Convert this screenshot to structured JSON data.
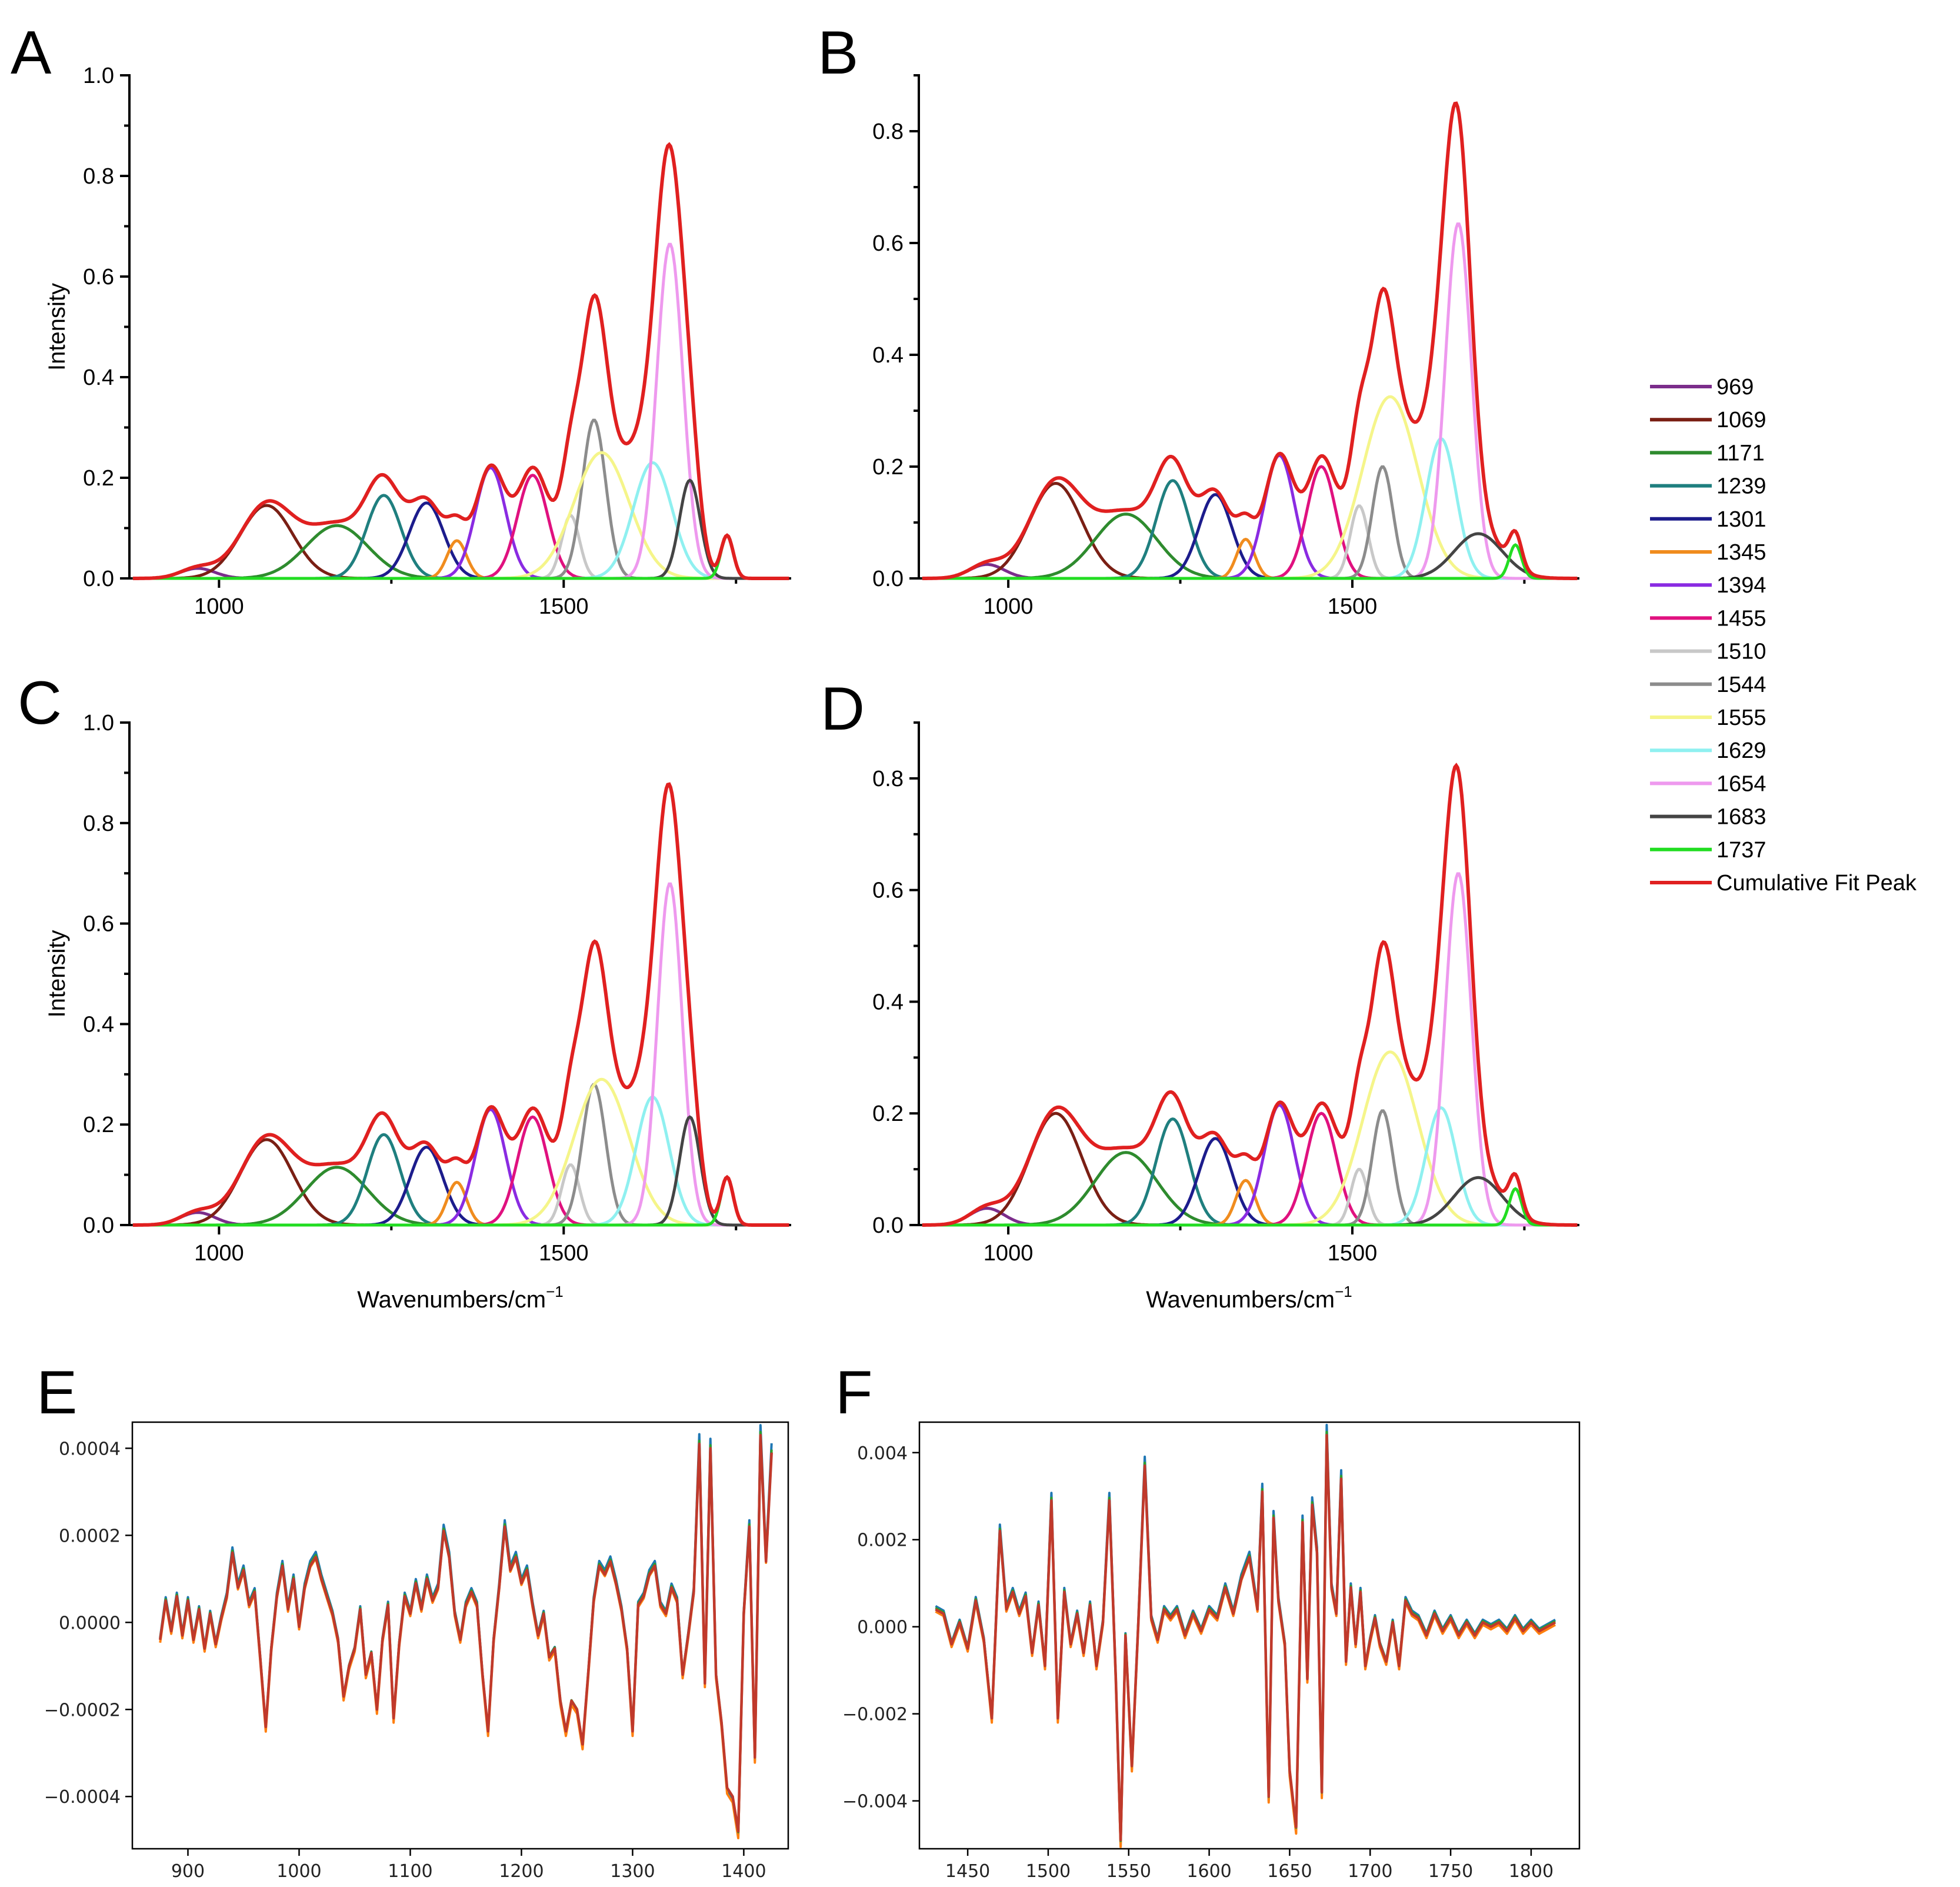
{
  "chart_data": [
    {
      "panel": "A",
      "type": "line",
      "ylabel": "Intensity",
      "xlabel": "",
      "xlim": [
        870,
        1830
      ],
      "ylim": [
        0,
        1.0
      ],
      "xticks": [
        "1000",
        "1500"
      ],
      "yticks": [
        "0.0",
        "0.2",
        "0.4",
        "0.6",
        "0.8",
        "1.0"
      ],
      "peaks": [
        {
          "name": "969",
          "center": 969,
          "height": 0.02,
          "sigma": 25
        },
        {
          "name": "1069",
          "center": 1069,
          "height": 0.145,
          "sigma": 38
        },
        {
          "name": "1171",
          "center": 1171,
          "height": 0.105,
          "sigma": 45
        },
        {
          "name": "1239",
          "center": 1239,
          "height": 0.165,
          "sigma": 25
        },
        {
          "name": "1301",
          "center": 1301,
          "height": 0.15,
          "sigma": 25
        },
        {
          "name": "1345",
          "center": 1345,
          "height": 0.075,
          "sigma": 14
        },
        {
          "name": "1394",
          "center": 1394,
          "height": 0.22,
          "sigma": 22
        },
        {
          "name": "1455",
          "center": 1455,
          "height": 0.205,
          "sigma": 22
        },
        {
          "name": "1510",
          "center": 1510,
          "height": 0.125,
          "sigma": 13
        },
        {
          "name": "1544",
          "center": 1544,
          "height": 0.315,
          "sigma": 17
        },
        {
          "name": "1555",
          "center": 1555,
          "height": 0.25,
          "sigma": 40
        },
        {
          "name": "1629",
          "center": 1629,
          "height": 0.23,
          "sigma": 28
        },
        {
          "name": "1654",
          "center": 1654,
          "height": 0.665,
          "sigma": 19
        },
        {
          "name": "1683",
          "center": 1683,
          "height": 0.195,
          "sigma": 15
        },
        {
          "name": "1737",
          "center": 1737,
          "height": 0.085,
          "sigma": 9
        }
      ]
    },
    {
      "panel": "B",
      "type": "line",
      "ylabel": "",
      "xlabel": "",
      "xlim": [
        870,
        1830
      ],
      "ylim": [
        0,
        0.9
      ],
      "xticks": [
        "1000",
        "1500"
      ],
      "yticks": [
        "0.0",
        "0.2",
        "0.4",
        "0.6",
        "0.8"
      ],
      "peaks": [
        {
          "name": "969",
          "center": 969,
          "height": 0.025,
          "sigma": 25
        },
        {
          "name": "1069",
          "center": 1069,
          "height": 0.17,
          "sigma": 38
        },
        {
          "name": "1171",
          "center": 1171,
          "height": 0.115,
          "sigma": 45
        },
        {
          "name": "1239",
          "center": 1239,
          "height": 0.175,
          "sigma": 24
        },
        {
          "name": "1301",
          "center": 1301,
          "height": 0.15,
          "sigma": 24
        },
        {
          "name": "1345",
          "center": 1345,
          "height": 0.07,
          "sigma": 13
        },
        {
          "name": "1394",
          "center": 1394,
          "height": 0.22,
          "sigma": 22
        },
        {
          "name": "1455",
          "center": 1455,
          "height": 0.2,
          "sigma": 21
        },
        {
          "name": "1510",
          "center": 1510,
          "height": 0.13,
          "sigma": 13
        },
        {
          "name": "1544",
          "center": 1544,
          "height": 0.2,
          "sigma": 15
        },
        {
          "name": "1555",
          "center": 1555,
          "height": 0.325,
          "sigma": 40
        },
        {
          "name": "1629",
          "center": 1629,
          "height": 0.25,
          "sigma": 22
        },
        {
          "name": "1654",
          "center": 1654,
          "height": 0.635,
          "sigma": 19
        },
        {
          "name": "1683",
          "center": 1683,
          "height": 0.08,
          "sigma": 35
        },
        {
          "name": "1737",
          "center": 1737,
          "height": 0.06,
          "sigma": 9
        }
      ]
    },
    {
      "panel": "C",
      "type": "line",
      "ylabel": "Intensity",
      "xlabel": "Wavenumbers/cm",
      "xlabel_sup": "−1",
      "xlim": [
        870,
        1830
      ],
      "ylim": [
        0,
        1.0
      ],
      "xticks": [
        "1000",
        "1500"
      ],
      "yticks": [
        "0.0",
        "0.2",
        "0.4",
        "0.6",
        "0.8",
        "1.0"
      ],
      "peaks": [
        {
          "name": "969",
          "center": 969,
          "height": 0.025,
          "sigma": 25
        },
        {
          "name": "1069",
          "center": 1069,
          "height": 0.17,
          "sigma": 38
        },
        {
          "name": "1171",
          "center": 1171,
          "height": 0.115,
          "sigma": 45
        },
        {
          "name": "1239",
          "center": 1239,
          "height": 0.18,
          "sigma": 24
        },
        {
          "name": "1301",
          "center": 1301,
          "height": 0.155,
          "sigma": 24
        },
        {
          "name": "1345",
          "center": 1345,
          "height": 0.085,
          "sigma": 14
        },
        {
          "name": "1394",
          "center": 1394,
          "height": 0.23,
          "sigma": 22
        },
        {
          "name": "1455",
          "center": 1455,
          "height": 0.215,
          "sigma": 22
        },
        {
          "name": "1510",
          "center": 1510,
          "height": 0.12,
          "sigma": 13
        },
        {
          "name": "1544",
          "center": 1544,
          "height": 0.28,
          "sigma": 17
        },
        {
          "name": "1555",
          "center": 1555,
          "height": 0.29,
          "sigma": 40
        },
        {
          "name": "1629",
          "center": 1629,
          "height": 0.255,
          "sigma": 24
        },
        {
          "name": "1654",
          "center": 1654,
          "height": 0.68,
          "sigma": 18
        },
        {
          "name": "1683",
          "center": 1683,
          "height": 0.215,
          "sigma": 15
        },
        {
          "name": "1737",
          "center": 1737,
          "height": 0.095,
          "sigma": 9
        }
      ]
    },
    {
      "panel": "D",
      "type": "line",
      "ylabel": "",
      "xlabel": "Wavenumbers/cm",
      "xlabel_sup": "−1",
      "xlim": [
        870,
        1830
      ],
      "ylim": [
        0,
        0.9
      ],
      "xticks": [
        "1000",
        "1500"
      ],
      "yticks": [
        "0.0",
        "0.2",
        "0.4",
        "0.6",
        "0.8"
      ],
      "peaks": [
        {
          "name": "969",
          "center": 969,
          "height": 0.03,
          "sigma": 25
        },
        {
          "name": "1069",
          "center": 1069,
          "height": 0.2,
          "sigma": 38
        },
        {
          "name": "1171",
          "center": 1171,
          "height": 0.13,
          "sigma": 45
        },
        {
          "name": "1239",
          "center": 1239,
          "height": 0.19,
          "sigma": 24
        },
        {
          "name": "1301",
          "center": 1301,
          "height": 0.155,
          "sigma": 24
        },
        {
          "name": "1345",
          "center": 1345,
          "height": 0.08,
          "sigma": 14
        },
        {
          "name": "1394",
          "center": 1394,
          "height": 0.215,
          "sigma": 22
        },
        {
          "name": "1455",
          "center": 1455,
          "height": 0.2,
          "sigma": 22
        },
        {
          "name": "1510",
          "center": 1510,
          "height": 0.1,
          "sigma": 12
        },
        {
          "name": "1544",
          "center": 1544,
          "height": 0.205,
          "sigma": 15
        },
        {
          "name": "1555",
          "center": 1555,
          "height": 0.31,
          "sigma": 40
        },
        {
          "name": "1629",
          "center": 1629,
          "height": 0.21,
          "sigma": 22
        },
        {
          "name": "1654",
          "center": 1654,
          "height": 0.63,
          "sigma": 19
        },
        {
          "name": "1683",
          "center": 1683,
          "height": 0.085,
          "sigma": 35
        },
        {
          "name": "1737",
          "center": 1737,
          "height": 0.065,
          "sigma": 9
        }
      ]
    },
    {
      "panel": "E",
      "type": "line",
      "xlim": [
        850,
        1440
      ],
      "ylim": [
        -0.00052,
        0.00046
      ],
      "xticks": [
        "900",
        "1000",
        "1100",
        "1200",
        "1300",
        "1400"
      ],
      "xtick_values": [
        900,
        1000,
        1100,
        1200,
        1300,
        1400
      ],
      "yticks": [
        "0.0004",
        "0.0002",
        "0.0000",
        "−0.0002",
        "−0.0004"
      ],
      "ytick_values": [
        0.0004,
        0.0002,
        0.0,
        -0.0002,
        -0.0004
      ],
      "series_colors": [
        "#1f77b4",
        "#ff7f0e",
        "#2ca02c",
        "#c0392b"
      ],
      "x": [
        875,
        880,
        885,
        890,
        895,
        900,
        905,
        910,
        915,
        920,
        925,
        930,
        935,
        940,
        945,
        950,
        955,
        960,
        965,
        970,
        975,
        980,
        985,
        990,
        995,
        1000,
        1005,
        1010,
        1015,
        1020,
        1025,
        1030,
        1035,
        1040,
        1045,
        1050,
        1055,
        1060,
        1065,
        1070,
        1075,
        1080,
        1085,
        1090,
        1095,
        1100,
        1105,
        1110,
        1115,
        1120,
        1125,
        1130,
        1135,
        1140,
        1145,
        1150,
        1155,
        1160,
        1165,
        1170,
        1175,
        1180,
        1185,
        1190,
        1195,
        1200,
        1205,
        1210,
        1215,
        1220,
        1225,
        1230,
        1235,
        1240,
        1245,
        1250,
        1255,
        1260,
        1265,
        1270,
        1275,
        1280,
        1285,
        1290,
        1295,
        1300,
        1305,
        1310,
        1315,
        1320,
        1325,
        1330,
        1335,
        1340,
        1345,
        1350,
        1355,
        1360,
        1365,
        1370,
        1375,
        1380,
        1385,
        1390,
        1395,
        1400,
        1405,
        1410,
        1415,
        1420,
        1425
      ],
      "y": [
        -4e-05,
        5e-05,
        -2e-05,
        6e-05,
        -3e-05,
        5e-05,
        -4e-05,
        3e-05,
        -6e-05,
        2e-05,
        -5e-05,
        1e-05,
        6e-05,
        0.00016,
        8e-05,
        0.00012,
        4e-05,
        7e-05,
        -8e-05,
        -0.00024,
        -6e-05,
        6e-05,
        0.00013,
        3e-05,
        0.0001,
        -1e-05,
        8e-05,
        0.00013,
        0.00015,
        0.0001,
        6e-05,
        2e-05,
        -4e-05,
        -0.00017,
        -0.0001,
        -6e-05,
        3e-05,
        -0.00012,
        -7e-05,
        -0.0002,
        -4e-05,
        4e-05,
        -0.00022,
        -5e-05,
        6e-05,
        2e-05,
        9e-05,
        3e-05,
        0.0001,
        5e-05,
        8e-05,
        0.00021,
        0.00015,
        2e-05,
        -4e-05,
        4e-05,
        7e-05,
        4e-05,
        -0.00012,
        -0.00025,
        -4e-05,
        8e-05,
        0.00022,
        0.00012,
        0.00015,
        9e-05,
        0.00012,
        4e-05,
        -3e-05,
        2e-05,
        -8e-05,
        -6e-05,
        -0.00018,
        -0.00025,
        -0.00018,
        -0.0002,
        -0.00028,
        -0.00012,
        5e-05,
        0.00013,
        0.00011,
        0.00014,
        9e-05,
        3e-05,
        -6e-05,
        -0.00025,
        4e-05,
        6e-05,
        0.00011,
        0.00013,
        4e-05,
        2e-05,
        8e-05,
        5e-05,
        -0.00012,
        -3e-05,
        7e-05,
        0.00041,
        -0.00014,
        0.0004,
        -0.00012,
        -0.00023,
        -0.00038,
        -0.0004,
        -0.00048,
        2e-05,
        0.00022,
        -0.00031,
        0.00043,
        0.00014,
        0.00039
      ]
    },
    {
      "panel": "F",
      "type": "line",
      "xlim": [
        1420,
        1830
      ],
      "ylim": [
        -0.0051,
        0.0047
      ],
      "xticks": [
        "1450",
        "1500",
        "1550",
        "1600",
        "1650",
        "1700",
        "1750",
        "1800"
      ],
      "xtick_values": [
        1450,
        1500,
        1550,
        1600,
        1650,
        1700,
        1750,
        1800
      ],
      "yticks": [
        "0.004",
        "0.002",
        "0.000",
        "−0.002",
        "−0.004"
      ],
      "ytick_values": [
        0.004,
        0.002,
        0.0,
        -0.002,
        -0.004
      ],
      "series_colors": [
        "#1f77b4",
        "#ff7f0e",
        "#2ca02c",
        "#c0392b"
      ],
      "x": [
        1430,
        1435,
        1440,
        1445,
        1450,
        1455,
        1460,
        1465,
        1470,
        1474,
        1478,
        1482,
        1486,
        1490,
        1494,
        1498,
        1502,
        1506,
        1510,
        1514,
        1518,
        1522,
        1526,
        1530,
        1534,
        1538,
        1542,
        1545,
        1548,
        1552,
        1556,
        1560,
        1564,
        1568,
        1572,
        1576,
        1580,
        1585,
        1590,
        1595,
        1600,
        1605,
        1610,
        1615,
        1620,
        1625,
        1630,
        1633,
        1637,
        1640,
        1643,
        1647,
        1650,
        1654,
        1658,
        1661,
        1664,
        1667,
        1670,
        1673,
        1676,
        1679,
        1682,
        1685,
        1688,
        1691,
        1694,
        1697,
        1700,
        1703,
        1706,
        1710,
        1714,
        1718,
        1722,
        1726,
        1730,
        1735,
        1740,
        1745,
        1750,
        1755,
        1760,
        1765,
        1770,
        1775,
        1780,
        1785,
        1790,
        1795,
        1800,
        1805,
        1810,
        1815
      ],
      "y": [
        0.0004,
        0.0003,
        -0.0004,
        0.0001,
        -0.0005,
        0.0006,
        -0.0003,
        -0.0021,
        0.0022,
        0.0004,
        0.0008,
        0.0003,
        0.0007,
        -0.0006,
        0.0005,
        -0.0009,
        0.0029,
        -0.0021,
        0.0008,
        -0.0004,
        0.0003,
        -0.0006,
        0.0005,
        -0.0009,
        0.0001,
        0.0029,
        -0.0012,
        -0.0049,
        -0.0002,
        -0.0032,
        0.0001,
        0.0037,
        0.0002,
        -0.0003,
        0.0004,
        0.0002,
        0.0004,
        -0.0002,
        0.0003,
        -0.0001,
        0.0004,
        0.0002,
        0.0009,
        0.0003,
        0.0011,
        0.0016,
        0.0004,
        0.0031,
        -0.0039,
        0.0025,
        0.0006,
        -0.0004,
        -0.0033,
        -0.0046,
        0.0024,
        -0.0012,
        0.0028,
        0.0017,
        -0.0038,
        0.0044,
        0.0009,
        0.0003,
        0.0034,
        -0.0008,
        0.0009,
        -0.0004,
        0.0008,
        -0.0009,
        -0.0003,
        0.0002,
        -0.0004,
        -0.0008,
        0.0001,
        -0.0009,
        0.0006,
        0.0003,
        0.0002,
        -0.0002,
        0.0003,
        -0.0001,
        0.0002,
        -0.0002,
        0.0001,
        -0.0002,
        0.0001,
        0.0,
        0.0001,
        -0.0001,
        0.0002,
        -0.0001,
        0.0001,
        -0.0001,
        0.0,
        0.0001
      ]
    }
  ],
  "panel_labels": {
    "A": "A",
    "B": "B",
    "C": "C",
    "D": "D",
    "E": "E",
    "F": "F"
  },
  "legend": {
    "entries": [
      {
        "label": "969",
        "color": "#7b2d8b"
      },
      {
        "label": "1069",
        "color": "#7a1f14"
      },
      {
        "label": "1171",
        "color": "#2e8b2e"
      },
      {
        "label": "1239",
        "color": "#1f7f7f"
      },
      {
        "label": "1301",
        "color": "#1c1c8c"
      },
      {
        "label": "1345",
        "color": "#f08c1e"
      },
      {
        "label": "1394",
        "color": "#8a2be2"
      },
      {
        "label": "1455",
        "color": "#e0117f"
      },
      {
        "label": "1510",
        "color": "#c8c8c8"
      },
      {
        "label": "1544",
        "color": "#8c8c8c"
      },
      {
        "label": "1555",
        "color": "#f5f58a"
      },
      {
        "label": "1629",
        "color": "#8ff0f0"
      },
      {
        "label": "1654",
        "color": "#ee99ee"
      },
      {
        "label": "1683",
        "color": "#444444"
      },
      {
        "label": "1737",
        "color": "#22dd22"
      },
      {
        "label": "Cumulative Fit Peak",
        "color": "#e02020"
      }
    ]
  }
}
